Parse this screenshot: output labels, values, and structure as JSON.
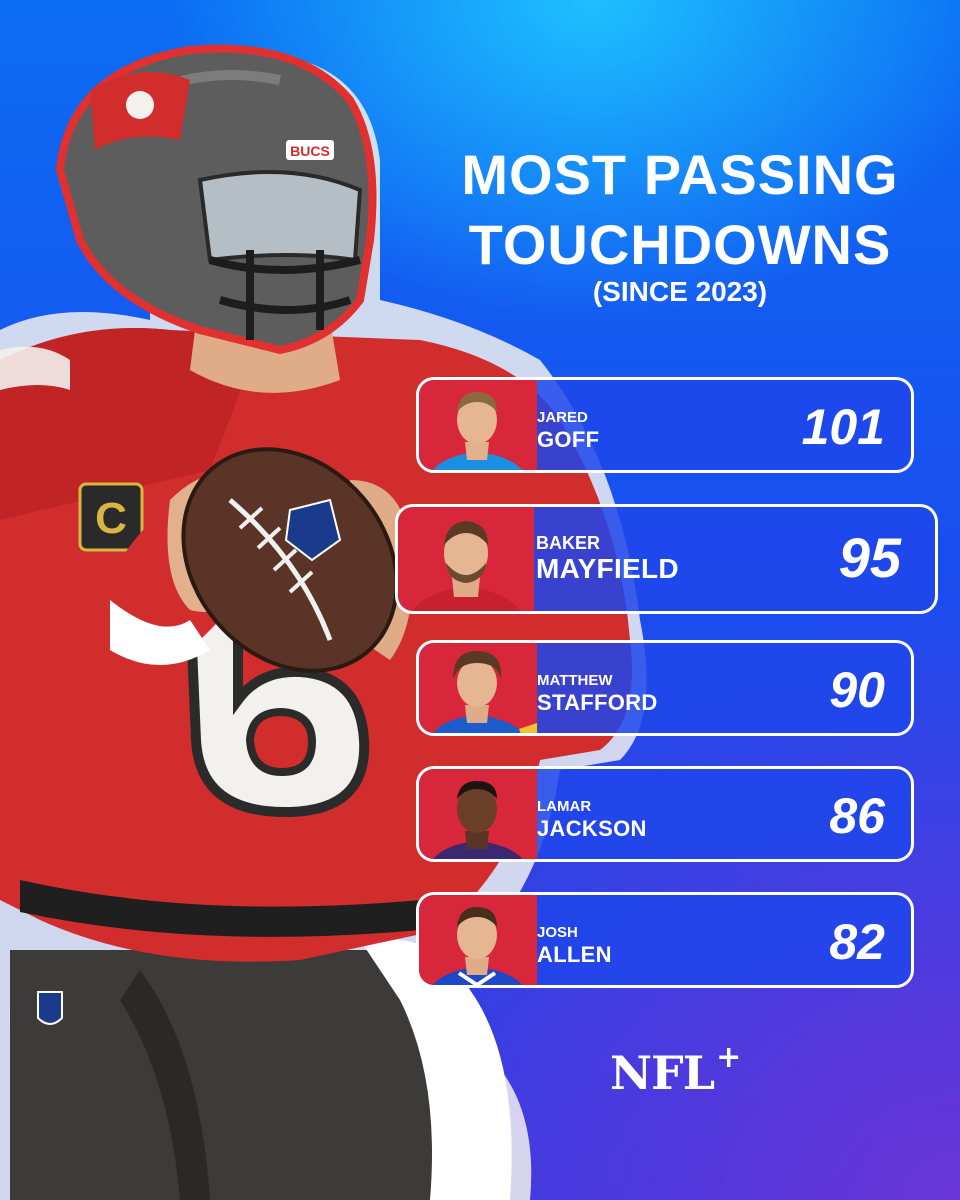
{
  "title": {
    "line1": "MOST PASSING",
    "line2": "TOUCHDOWNS"
  },
  "subtitle": "(SINCE 2023)",
  "players": [
    {
      "first": "JARED",
      "last": "GOFF",
      "td": "101",
      "head_bg": "#d8263a",
      "jersey": "#1b8fe0"
    },
    {
      "first": "BAKER",
      "last": "MAYFIELD",
      "td": "95",
      "head_bg": "#d8263a",
      "jersey": "#c8202f"
    },
    {
      "first": "MATTHEW",
      "last": "STAFFORD",
      "td": "90",
      "head_bg": "#d8263a",
      "jersey": "#1e5ccc"
    },
    {
      "first": "LAMAR",
      "last": "JACKSON",
      "td": "86",
      "head_bg": "#d8263a",
      "jersey": "#3a2870"
    },
    {
      "first": "JOSH",
      "last": "ALLEN",
      "td": "82",
      "head_bg": "#d8263a",
      "jersey": "#1e48c8"
    }
  ],
  "logo": {
    "text": "NFL",
    "plus": "+"
  },
  "colors": {
    "accent_red": "#d8263a",
    "brand_blue": "#1a4ef0",
    "pewter": "#5a5a5a"
  }
}
